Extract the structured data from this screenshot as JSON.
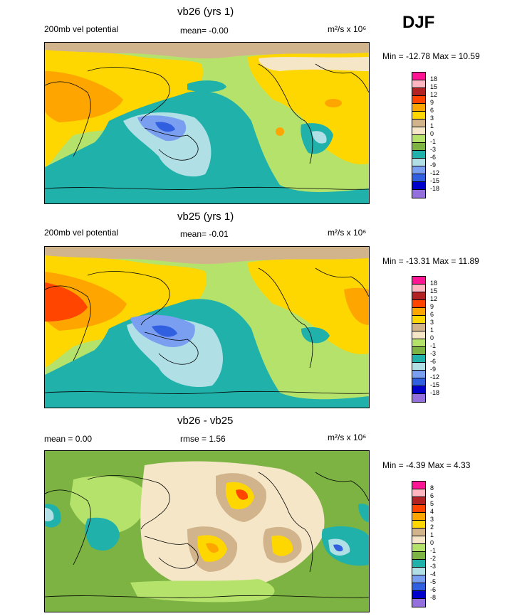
{
  "season": "DJF",
  "panel1": {
    "title": "vb26 (yrs 1)",
    "left": "200mb vel potential",
    "mean": "mean=  -0.00",
    "units": "m²/s x 10⁶",
    "minmax": "Min = -12.78 Max =  10.59"
  },
  "panel2": {
    "title": "vb25 (yrs 1)",
    "left": "200mb vel potential",
    "mean": "mean=  -0.01",
    "units": "m²/s x 10⁶",
    "minmax": "Min = -13.31 Max =  11.89"
  },
  "panel3": {
    "title": "vb26 - vb25",
    "left": "mean =   0.00",
    "mean": "rmse =   1.56",
    "units": "m²/s x 10⁶",
    "minmax": "Min =  -4.39 Max =   4.33"
  },
  "legend_main": {
    "colors": [
      "#ff1493",
      "#ffb6c1",
      "#b22222",
      "#ff4500",
      "#ffa500",
      "#ffd700",
      "#d2b48c",
      "#f5e6c8",
      "#b5e26b",
      "#7cb342",
      "#20b2aa",
      "#b0e0e6",
      "#7b9ff0",
      "#3060e0",
      "#0000cd",
      "#9370db"
    ],
    "ticks": [
      "18",
      "15",
      "12",
      "9",
      "6",
      "3",
      "1",
      "0",
      "-1",
      "-3",
      "-6",
      "-9",
      "-12",
      "-15",
      "-18"
    ]
  },
  "legend_diff": {
    "colors": [
      "#ff1493",
      "#ffb6c1",
      "#b22222",
      "#ff4500",
      "#ffa500",
      "#ffd700",
      "#d2b48c",
      "#f5e6c8",
      "#b5e26b",
      "#7cb342",
      "#20b2aa",
      "#b0e0e6",
      "#7b9ff0",
      "#3060e0",
      "#0000cd",
      "#9370db"
    ],
    "ticks": [
      "8",
      "6",
      "5",
      "4",
      "3",
      "2",
      "1",
      "0",
      "-1",
      "-2",
      "-3",
      "-4",
      "-5",
      "-6",
      "-8"
    ]
  }
}
